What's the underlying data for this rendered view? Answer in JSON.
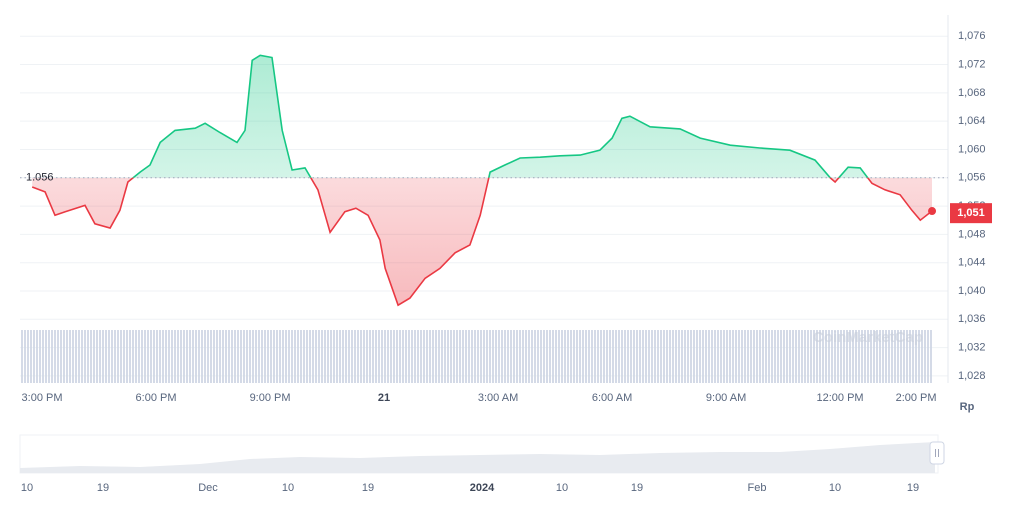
{
  "chart_data": {
    "type": "line",
    "x": [
      14.74,
      15.08,
      15.34,
      15.61,
      16.13,
      16.39,
      16.79,
      17.05,
      17.26,
      17.58,
      17.84,
      18.11,
      18.5,
      19.03,
      19.29,
      19.68,
      20.13,
      20.34,
      20.53,
      20.74,
      21.05,
      21.32,
      21.58,
      21.92,
      22.26,
      22.58,
      22.97,
      23.26,
      23.58,
      23.89,
      24.03,
      24.37,
      24.68,
      25.08,
      25.47,
      25.87,
      26.26,
      26.53,
      26.79,
      27.18,
      27.58,
      28.11,
      28.63,
      29.16,
      29.68,
      30.0,
      30.26,
      30.47,
      31.0,
      31.79,
      32.32,
      33.11,
      33.89,
      34.68,
      35.34,
      35.74,
      35.87,
      36.21,
      36.53,
      36.84,
      37.18,
      37.58,
      37.89,
      38.11,
      38.42
    ],
    "values": [
      1054.7,
      1054.0,
      1050.7,
      1051.2,
      1052.1,
      1049.5,
      1048.9,
      1051.4,
      1055.4,
      1056.8,
      1057.8,
      1061.0,
      1062.7,
      1063.0,
      1063.7,
      1062.4,
      1061.0,
      1062.7,
      1072.6,
      1073.3,
      1073.0,
      1062.7,
      1057.1,
      1057.4,
      1054.3,
      1048.3,
      1051.2,
      1051.7,
      1050.7,
      1047.2,
      1043.2,
      1038.0,
      1039.0,
      1041.8,
      1043.2,
      1045.4,
      1046.5,
      1050.7,
      1056.8,
      1057.8,
      1058.8,
      1058.9,
      1059.1,
      1059.2,
      1059.9,
      1061.6,
      1064.4,
      1064.7,
      1063.2,
      1062.9,
      1061.6,
      1060.6,
      1060.2,
      1059.9,
      1058.5,
      1056.0,
      1055.4,
      1057.5,
      1057.4,
      1055.2,
      1054.3,
      1053.6,
      1051.4,
      1050.0,
      1051.3
    ],
    "up_color": "#16c784",
    "down_color": "#ea3943",
    "xlim": [
      14.42,
      38.84
    ],
    "xticks": [
      {
        "value": 15,
        "label": "3:00 PM"
      },
      {
        "value": 18,
        "label": "6:00 PM"
      },
      {
        "value": 21,
        "label": "9:00 PM"
      },
      {
        "value": 24,
        "label": "21",
        "bold": true
      },
      {
        "value": 27,
        "label": "3:00 AM"
      },
      {
        "value": 30,
        "label": "6:00 AM"
      },
      {
        "value": 33,
        "label": "9:00 AM"
      },
      {
        "value": 36,
        "label": "12:00 PM"
      },
      {
        "value": 38,
        "label": "2:00 PM"
      }
    ],
    "ylim": [
      1027,
      1079
    ],
    "yticks": [
      {
        "value": 1028,
        "label": "1,028"
      },
      {
        "value": 1032,
        "label": "1,032"
      },
      {
        "value": 1036,
        "label": "1,036"
      },
      {
        "value": 1040,
        "label": "1,040"
      },
      {
        "value": 1044,
        "label": "1,044"
      },
      {
        "value": 1048,
        "label": "1,048"
      },
      {
        "value": 1052,
        "label": "1,052"
      },
      {
        "value": 1056,
        "label": "1,056"
      },
      {
        "value": 1060,
        "label": "1,060"
      },
      {
        "value": 1064,
        "label": "1,064"
      },
      {
        "value": 1068,
        "label": "1,068"
      },
      {
        "value": 1072,
        "label": "1,072"
      },
      {
        "value": 1076,
        "label": "1,076"
      }
    ],
    "grid": true,
    "baseline": {
      "value": 1056,
      "label": "1.056"
    },
    "current": {
      "value": 1051,
      "label": "1,051"
    },
    "y_axis_label": "Rp",
    "watermark": "CoinMarketCap",
    "navigator": {
      "labels": [
        "10",
        "19",
        "Dec",
        "10",
        "19",
        "2024",
        "10",
        "19",
        "Feb",
        "10",
        "19"
      ]
    }
  }
}
